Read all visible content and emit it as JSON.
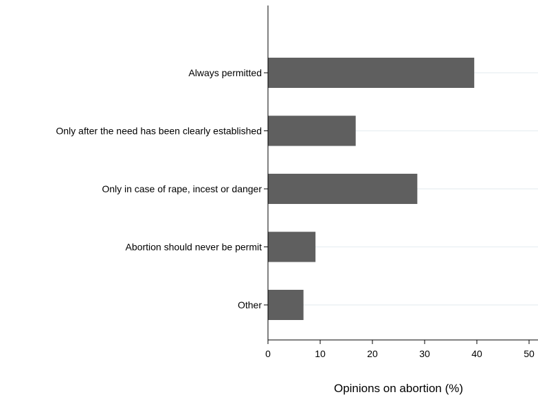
{
  "chart_data": {
    "type": "bar",
    "orientation": "horizontal",
    "categories": [
      "Always permitted",
      "Only after the need has been clearly established",
      "Only in case of rape, incest or danger",
      "Abortion should never be permit",
      "Other"
    ],
    "values": [
      39.5,
      16.8,
      28.6,
      9.1,
      6.8
    ],
    "xlabel": "Opinions on abortion (%)",
    "ylabel": "",
    "xlim": [
      0,
      50
    ],
    "xticks": [
      0,
      10,
      20,
      30,
      40,
      50
    ],
    "grid": "horizontal lines at each category",
    "legend": "none",
    "colors": {
      "bar": "#5f5f5f",
      "gridline": "#e8eef1",
      "axis": "#000000"
    }
  }
}
